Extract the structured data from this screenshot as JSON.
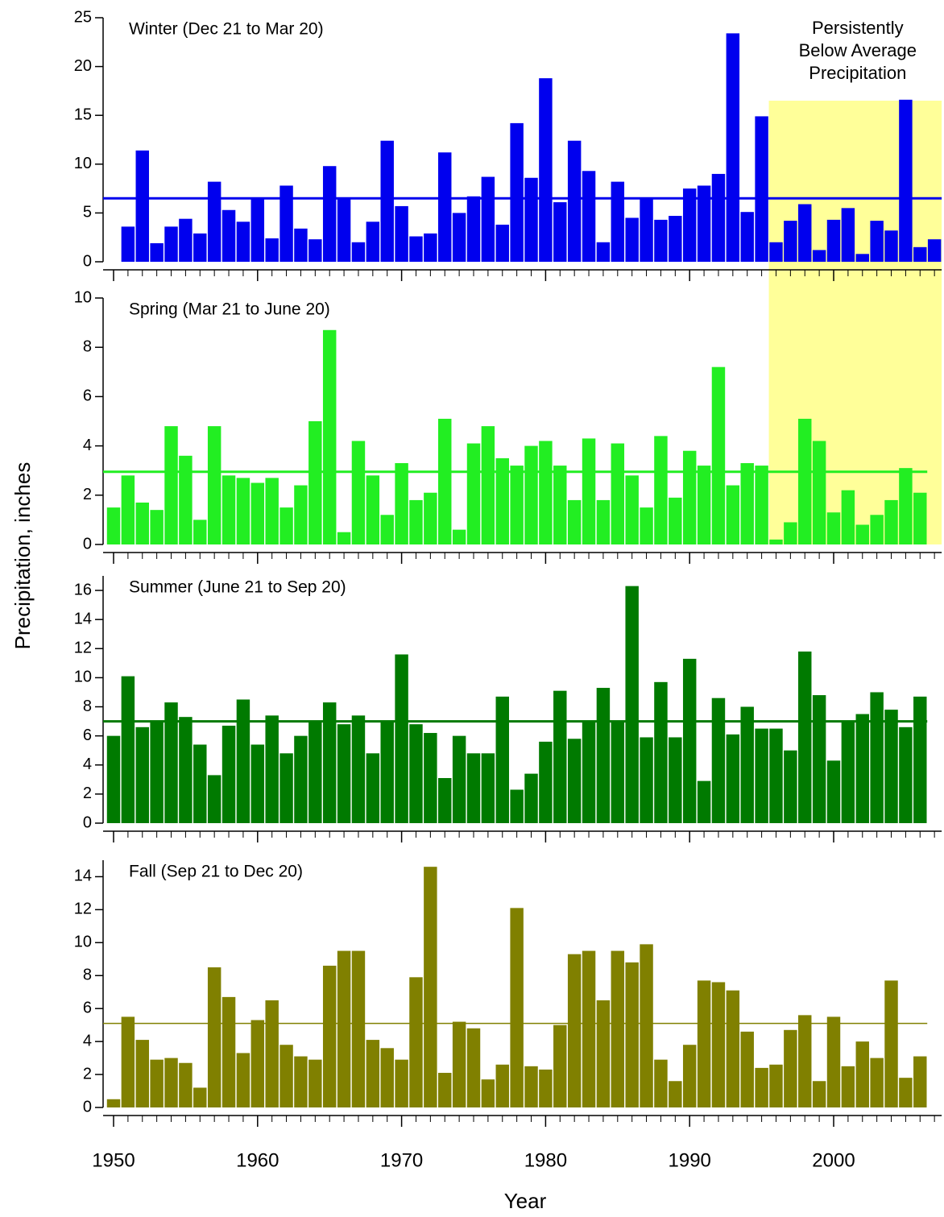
{
  "y_label": "Precipitation, inches",
  "x_label": "Year",
  "x_axis": {
    "xlim": [
      1949.25,
      2007.5
    ],
    "xticks": [
      1950,
      1960,
      1970,
      1980,
      1990,
      2000
    ],
    "xminorticks": [
      1951,
      1952,
      1953,
      1954,
      1955,
      1956,
      1957,
      1958,
      1959,
      1961,
      1962,
      1963,
      1964,
      1965,
      1966,
      1967,
      1968,
      1969,
      1971,
      1972,
      1973,
      1974,
      1975,
      1976,
      1977,
      1978,
      1979,
      1981,
      1982,
      1983,
      1984,
      1985,
      1986,
      1987,
      1988,
      1989,
      1991,
      1992,
      1993,
      1994,
      1995,
      1996,
      1997,
      1998,
      1999,
      2001,
      2002,
      2003,
      2004,
      2005,
      2006,
      2007
    ]
  },
  "highlight": {
    "label": [
      "Persistently",
      "Below Average",
      "Precipitation"
    ],
    "x_range": [
      1995.5,
      2007.5
    ],
    "top": 16.5,
    "color": "#ffff99"
  },
  "chart_data": [
    {
      "type": "bar",
      "title": "Winter (Dec 21 to Mar 20)",
      "color": "#0000ee",
      "mean": 6.5,
      "mean_width": 3,
      "ylim": [
        0,
        25
      ],
      "yticks": [
        0,
        5,
        10,
        15,
        20,
        25
      ],
      "x": [
        1951,
        1952,
        1953,
        1954,
        1955,
        1956,
        1957,
        1958,
        1959,
        1960,
        1961,
        1962,
        1963,
        1964,
        1965,
        1966,
        1967,
        1968,
        1969,
        1970,
        1971,
        1972,
        1973,
        1974,
        1975,
        1976,
        1977,
        1978,
        1979,
        1980,
        1981,
        1982,
        1983,
        1984,
        1985,
        1986,
        1987,
        1988,
        1989,
        1990,
        1991,
        1992,
        1993,
        1994,
        1995,
        1996,
        1997,
        1998,
        1999,
        2000,
        2001,
        2002,
        2003,
        2004,
        2005,
        2006,
        2007
      ],
      "values": [
        3.6,
        11.4,
        1.9,
        3.6,
        4.4,
        2.9,
        8.2,
        5.3,
        4.1,
        6.5,
        2.4,
        7.8,
        3.4,
        2.3,
        9.8,
        6.5,
        2.0,
        4.1,
        12.4,
        5.7,
        2.6,
        2.9,
        11.2,
        5.0,
        6.7,
        8.7,
        3.8,
        14.2,
        8.6,
        18.8,
        6.1,
        12.4,
        9.3,
        2.0,
        8.2,
        4.5,
        6.5,
        4.3,
        4.7,
        7.5,
        7.8,
        9.0,
        23.4,
        5.1,
        14.9,
        2.0,
        4.2,
        5.9,
        1.2,
        4.3,
        5.5,
        0.8,
        4.2,
        3.2,
        16.6,
        1.5,
        2.3
      ]
    },
    {
      "type": "bar",
      "title": "Spring (Mar 21 to June 20)",
      "color": "#22ee22",
      "mean": 2.95,
      "mean_width": 3,
      "ylim": [
        0,
        10
      ],
      "yticks": [
        0,
        2,
        4,
        6,
        8,
        10
      ],
      "x": [
        1950,
        1951,
        1952,
        1953,
        1954,
        1955,
        1956,
        1957,
        1958,
        1959,
        1960,
        1961,
        1962,
        1963,
        1964,
        1965,
        1966,
        1967,
        1968,
        1969,
        1970,
        1971,
        1972,
        1973,
        1974,
        1975,
        1976,
        1977,
        1978,
        1979,
        1980,
        1981,
        1982,
        1983,
        1984,
        1985,
        1986,
        1987,
        1988,
        1989,
        1990,
        1991,
        1992,
        1993,
        1994,
        1995,
        1996,
        1997,
        1998,
        1999,
        2000,
        2001,
        2002,
        2003,
        2004,
        2005,
        2006
      ],
      "values": [
        1.5,
        2.8,
        1.7,
        1.4,
        4.8,
        3.6,
        1.0,
        4.8,
        2.8,
        2.7,
        2.5,
        2.7,
        1.5,
        2.4,
        5.0,
        8.7,
        0.5,
        4.2,
        2.8,
        1.2,
        3.3,
        1.8,
        2.1,
        5.1,
        0.6,
        4.1,
        4.8,
        3.5,
        3.2,
        4.0,
        4.2,
        3.2,
        1.8,
        4.3,
        1.8,
        4.1,
        2.8,
        1.5,
        4.4,
        1.9,
        3.8,
        3.2,
        7.2,
        2.4,
        3.3,
        3.2,
        0.2,
        0.9,
        5.1,
        4.2,
        1.3,
        2.2,
        0.8,
        1.2,
        1.8,
        3.1,
        2.1
      ]
    },
    {
      "type": "bar",
      "title": "Summer (June 21 to Sep 20)",
      "color": "#007a00",
      "mean": 7.0,
      "mean_width": 3,
      "ylim": [
        0,
        17
      ],
      "yticks": [
        0,
        2,
        4,
        6,
        8,
        10,
        12,
        14,
        16
      ],
      "x": [
        1950,
        1951,
        1952,
        1953,
        1954,
        1955,
        1956,
        1957,
        1958,
        1959,
        1960,
        1961,
        1962,
        1963,
        1964,
        1965,
        1966,
        1967,
        1968,
        1969,
        1970,
        1971,
        1972,
        1973,
        1974,
        1975,
        1976,
        1977,
        1978,
        1979,
        1980,
        1981,
        1982,
        1983,
        1984,
        1985,
        1986,
        1987,
        1988,
        1989,
        1990,
        1991,
        1992,
        1993,
        1994,
        1995,
        1996,
        1997,
        1998,
        1999,
        2000,
        2001,
        2002,
        2003,
        2004,
        2005,
        2006
      ],
      "values": [
        6.0,
        10.1,
        6.6,
        7.0,
        8.3,
        7.3,
        5.4,
        3.3,
        6.7,
        8.5,
        5.4,
        7.4,
        4.8,
        6.0,
        7.0,
        8.3,
        6.8,
        7.4,
        4.8,
        7.0,
        11.6,
        6.8,
        6.2,
        3.1,
        6.0,
        4.8,
        4.8,
        8.7,
        2.3,
        3.4,
        5.6,
        9.1,
        5.8,
        7.0,
        9.3,
        7.0,
        16.3,
        5.9,
        9.7,
        5.9,
        11.3,
        2.9,
        8.6,
        6.1,
        8.0,
        6.5,
        6.5,
        5.0,
        11.8,
        8.8,
        4.3,
        7.0,
        7.5,
        9.0,
        7.8,
        6.6,
        8.7
      ]
    },
    {
      "type": "bar",
      "title": "Fall (Sep 21 to Dec 20)",
      "color": "#808000",
      "mean": 5.1,
      "mean_width": 1.5,
      "ylim": [
        0,
        15
      ],
      "yticks": [
        0,
        2,
        4,
        6,
        8,
        10,
        12,
        14
      ],
      "x": [
        1950,
        1951,
        1952,
        1953,
        1954,
        1955,
        1956,
        1957,
        1958,
        1959,
        1960,
        1961,
        1962,
        1963,
        1964,
        1965,
        1966,
        1967,
        1968,
        1969,
        1970,
        1971,
        1972,
        1973,
        1974,
        1975,
        1976,
        1977,
        1978,
        1979,
        1980,
        1981,
        1982,
        1983,
        1984,
        1985,
        1986,
        1987,
        1988,
        1989,
        1990,
        1991,
        1992,
        1993,
        1994,
        1995,
        1996,
        1997,
        1998,
        1999,
        2000,
        2001,
        2002,
        2003,
        2004,
        2005,
        2006
      ],
      "values": [
        0.5,
        5.5,
        4.1,
        2.9,
        3.0,
        2.7,
        1.2,
        8.5,
        6.7,
        3.3,
        5.3,
        6.5,
        3.8,
        3.1,
        2.9,
        8.6,
        9.5,
        9.5,
        4.1,
        3.6,
        2.9,
        7.9,
        14.6,
        2.1,
        5.2,
        4.8,
        1.7,
        2.6,
        12.1,
        2.5,
        2.3,
        5.0,
        9.3,
        9.5,
        6.5,
        9.5,
        8.8,
        9.9,
        2.9,
        1.6,
        3.8,
        7.7,
        7.6,
        7.1,
        4.6,
        2.4,
        2.6,
        4.7,
        5.6,
        1.6,
        5.5,
        2.5,
        4.0,
        3.0,
        7.7,
        1.8,
        3.1
      ]
    }
  ]
}
